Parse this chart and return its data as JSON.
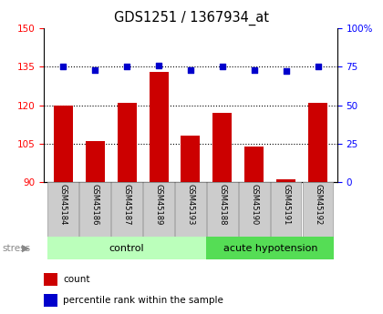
{
  "title": "GDS1251 / 1367934_at",
  "samples": [
    "GSM45184",
    "GSM45186",
    "GSM45187",
    "GSM45189",
    "GSM45193",
    "GSM45188",
    "GSM45190",
    "GSM45191",
    "GSM45192"
  ],
  "count_values": [
    120,
    106,
    121,
    133,
    108,
    117,
    104,
    91,
    121
  ],
  "percentile_values": [
    75,
    73,
    75,
    76,
    73,
    75,
    73,
    72,
    75
  ],
  "groups": [
    {
      "label": "control",
      "indices": [
        0,
        1,
        2,
        3,
        4
      ],
      "color": "#bbffbb"
    },
    {
      "label": "acute hypotension",
      "indices": [
        5,
        6,
        7,
        8
      ],
      "color": "#55dd55"
    }
  ],
  "ylim_left": [
    90,
    150
  ],
  "ylim_right": [
    0,
    100
  ],
  "yticks_left": [
    90,
    105,
    120,
    135,
    150
  ],
  "yticks_right": [
    0,
    25,
    50,
    75,
    100
  ],
  "bar_color": "#cc0000",
  "dot_color": "#0000cc",
  "bar_width": 0.6,
  "background_color": "#ffffff",
  "tick_label_bg": "#cccccc",
  "hgrid_values": [
    105,
    120,
    135
  ],
  "stress_label": "stress",
  "legend_items": [
    "count",
    "percentile rank within the sample"
  ]
}
